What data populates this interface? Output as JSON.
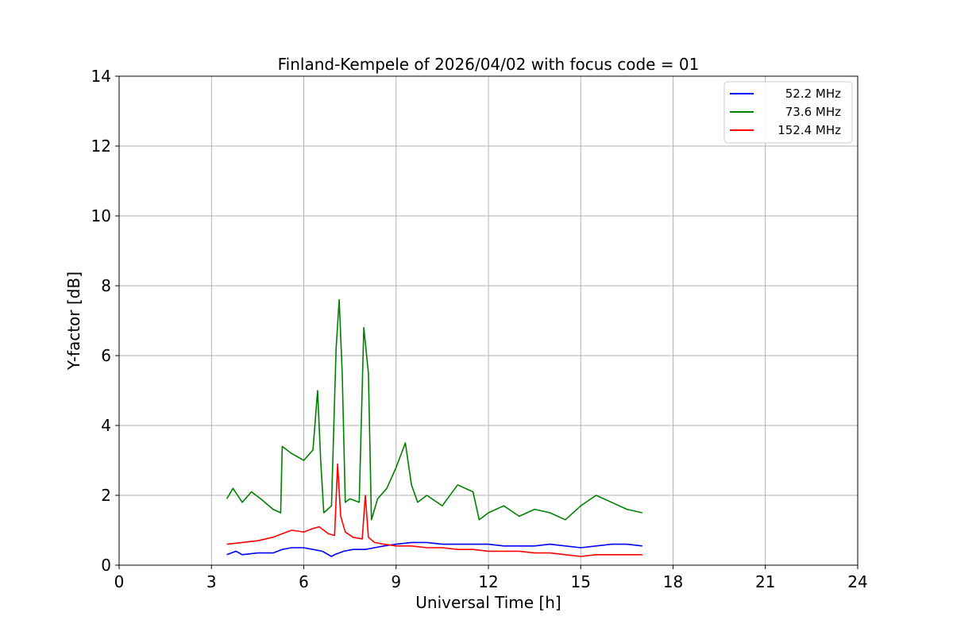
{
  "chart_data": {
    "type": "line",
    "title": "Finland-Kempele of 2026/04/02 with focus code = 01",
    "xlabel": "Universal Time [h]",
    "ylabel": "Y-factor [dB]",
    "xlim": [
      0,
      24
    ],
    "ylim": [
      0,
      14
    ],
    "xticks": [
      0,
      3,
      6,
      9,
      12,
      15,
      18,
      21,
      24
    ],
    "yticks": [
      0,
      2,
      4,
      6,
      8,
      10,
      12,
      14
    ],
    "grid": true,
    "legend_position": "top-right",
    "series": [
      {
        "name": "52.2 MHz",
        "color": "#0000ff",
        "x": [
          3.5,
          3.8,
          4.0,
          4.5,
          5.0,
          5.3,
          5.6,
          6.0,
          6.3,
          6.6,
          6.9,
          7.0,
          7.3,
          7.6,
          8.0,
          8.3,
          8.6,
          9.0,
          9.5,
          10.0,
          10.5,
          11.0,
          11.5,
          12.0,
          12.5,
          13.0,
          13.5,
          14.0,
          14.5,
          15.0,
          15.5,
          16.0,
          16.5,
          17.0
        ],
        "y": [
          0.3,
          0.4,
          0.3,
          0.35,
          0.35,
          0.45,
          0.5,
          0.5,
          0.45,
          0.4,
          0.25,
          0.3,
          0.4,
          0.45,
          0.45,
          0.5,
          0.55,
          0.6,
          0.65,
          0.65,
          0.6,
          0.6,
          0.6,
          0.6,
          0.55,
          0.55,
          0.55,
          0.6,
          0.55,
          0.5,
          0.55,
          0.6,
          0.6,
          0.55
        ]
      },
      {
        "name": "73.6 MHz",
        "color": "#008000",
        "x": [
          3.5,
          3.7,
          4.0,
          4.3,
          4.6,
          5.0,
          5.25,
          5.3,
          5.6,
          6.0,
          6.3,
          6.45,
          6.55,
          6.65,
          6.9,
          7.05,
          7.15,
          7.25,
          7.35,
          7.5,
          7.8,
          7.95,
          8.1,
          8.2,
          8.4,
          8.7,
          9.0,
          9.3,
          9.5,
          9.7,
          10.0,
          10.5,
          11.0,
          11.5,
          11.7,
          12.0,
          12.5,
          13.0,
          13.5,
          14.0,
          14.5,
          15.0,
          15.5,
          16.0,
          16.5,
          17.0
        ],
        "y": [
          1.9,
          2.2,
          1.8,
          2.1,
          1.9,
          1.6,
          1.5,
          3.4,
          3.2,
          3.0,
          3.3,
          5.0,
          3.0,
          1.5,
          1.7,
          6.2,
          7.6,
          5.5,
          1.8,
          1.9,
          1.8,
          6.8,
          5.5,
          1.3,
          1.9,
          2.2,
          2.8,
          3.5,
          2.3,
          1.8,
          2.0,
          1.7,
          2.3,
          2.1,
          1.3,
          1.5,
          1.7,
          1.4,
          1.6,
          1.5,
          1.3,
          1.7,
          2.0,
          1.8,
          1.6,
          1.5
        ]
      },
      {
        "name": "152.4 MHz",
        "color": "#ff0000",
        "x": [
          3.5,
          4.0,
          4.5,
          5.0,
          5.3,
          5.6,
          6.0,
          6.3,
          6.5,
          6.8,
          7.0,
          7.1,
          7.2,
          7.35,
          7.6,
          7.9,
          8.0,
          8.1,
          8.3,
          8.6,
          9.0,
          9.5,
          10.0,
          10.5,
          11.0,
          11.5,
          12.0,
          12.5,
          13.0,
          13.5,
          14.0,
          14.5,
          15.0,
          15.5,
          16.0,
          16.5,
          17.0
        ],
        "y": [
          0.6,
          0.65,
          0.7,
          0.8,
          0.9,
          1.0,
          0.95,
          1.05,
          1.1,
          0.9,
          0.85,
          2.9,
          1.4,
          0.95,
          0.8,
          0.75,
          2.0,
          0.8,
          0.65,
          0.6,
          0.55,
          0.55,
          0.5,
          0.5,
          0.45,
          0.45,
          0.4,
          0.4,
          0.4,
          0.35,
          0.35,
          0.3,
          0.25,
          0.3,
          0.3,
          0.3,
          0.3
        ]
      }
    ]
  }
}
